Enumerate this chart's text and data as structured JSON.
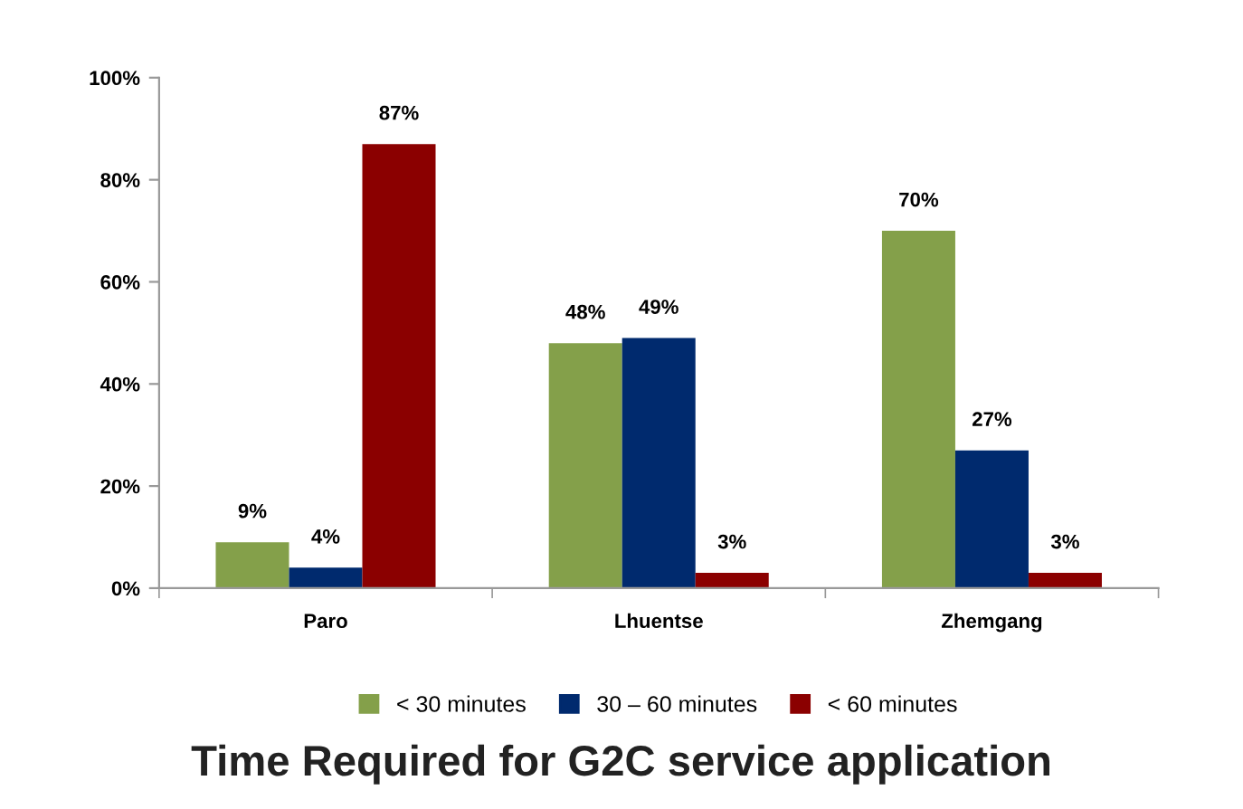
{
  "chart_data": {
    "type": "bar",
    "title": "Time Required for G2C service application",
    "categories": [
      "Paro",
      "Lhuentse",
      "Zhemgang"
    ],
    "series": [
      {
        "name": "< 30 minutes",
        "color": "#84a04a",
        "values": [
          9,
          48,
          70
        ],
        "value_labels": [
          "9%",
          "48%",
          "70%"
        ]
      },
      {
        "name": "30 – 60 minutes",
        "color": "#002a6e",
        "values": [
          4,
          49,
          27
        ],
        "value_labels": [
          "4%",
          "49%",
          "27%"
        ]
      },
      {
        "name": "< 60 minutes",
        "color": "#8b0000",
        "values": [
          87,
          3,
          3
        ],
        "value_labels": [
          "87%",
          "3%",
          "3%"
        ]
      }
    ],
    "ylim": [
      0,
      100
    ],
    "yticks": [
      {
        "value": 0,
        "label": "0%"
      },
      {
        "value": 20,
        "label": "20%"
      },
      {
        "value": 40,
        "label": "40%"
      },
      {
        "value": 60,
        "label": "60%"
      },
      {
        "value": 80,
        "label": "80%"
      },
      {
        "value": 100,
        "label": "100%"
      }
    ],
    "grid": false,
    "legend": "bottom"
  }
}
